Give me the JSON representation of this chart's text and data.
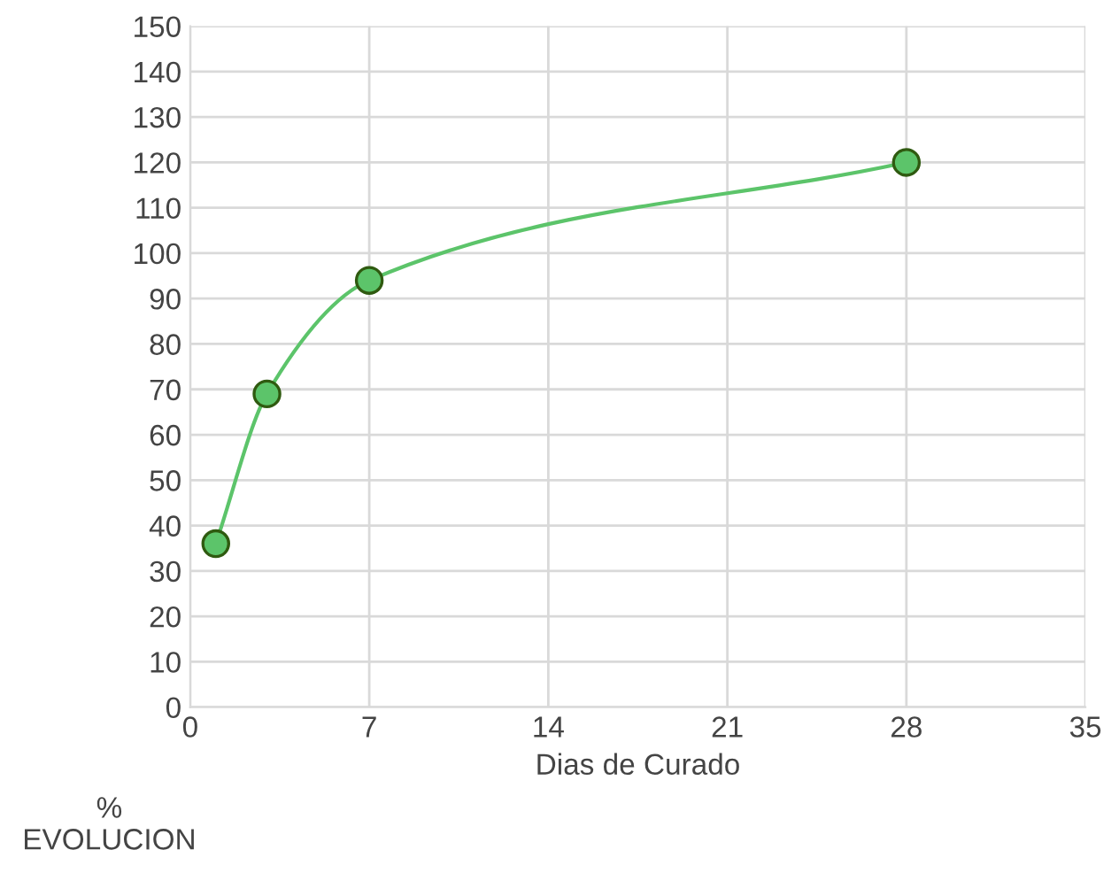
{
  "chart_data": {
    "type": "line",
    "xlabel": "Dias de Curado",
    "ylabel": "%\nEVOLUCION",
    "x": [
      1,
      3,
      7,
      28
    ],
    "series": [
      {
        "color": "#5cc46a",
        "values": [
          36,
          69,
          94,
          120
        ]
      }
    ],
    "marker": "circle",
    "line_style": "solid",
    "xlim": [
      0,
      35
    ],
    "xticks": [
      0,
      7,
      14,
      21,
      28,
      35
    ],
    "ylim": [
      0,
      150
    ],
    "yticks": [
      0,
      10,
      20,
      30,
      40,
      50,
      60,
      70,
      80,
      90,
      100,
      110,
      120,
      130,
      140,
      150
    ],
    "grid": true,
    "legend": false
  }
}
